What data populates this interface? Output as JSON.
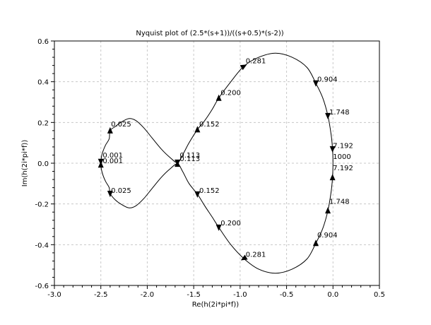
{
  "chart_data": {
    "type": "line",
    "title": "Nyquist plot of (2.5*(s+1))/((s+0.5)*(s-2))",
    "xlabel": "Re(h(2i*pi*f))",
    "ylabel": "Im(h(2i*pi*f))",
    "xlim": [
      -3.0,
      0.5
    ],
    "ylim": [
      -0.6,
      0.6
    ],
    "x_ticks": [
      "-3.0",
      "-2.5",
      "-2.0",
      "-1.5",
      "-1.0",
      "-0.5",
      "0.0",
      "0.5"
    ],
    "y_ticks": [
      "0.6",
      "0.4",
      "0.2",
      "0.0",
      "-0.2",
      "-0.4",
      "-0.6"
    ],
    "grid": true,
    "series": [
      {
        "values": [
          [
            -2.5,
            -0.0001
          ],
          [
            -2.494,
            -0.03
          ],
          [
            -2.476,
            -0.06
          ],
          [
            -2.448,
            -0.09
          ],
          [
            -2.41,
            -0.12
          ],
          [
            -2.4,
            -0.149
          ],
          [
            -2.345,
            -0.18
          ],
          [
            -2.286,
            -0.2
          ],
          [
            -2.2,
            -0.219
          ],
          [
            -2.125,
            -0.21
          ],
          [
            -2.04,
            -0.175
          ],
          [
            -1.95,
            -0.125
          ],
          [
            -1.85,
            -0.07
          ],
          [
            -1.76,
            -0.03
          ],
          [
            -1.675,
            -0.003
          ],
          [
            -1.62,
            -0.04
          ],
          [
            -1.55,
            -0.1
          ],
          [
            -1.46,
            -0.152
          ],
          [
            -1.38,
            -0.21
          ],
          [
            -1.3,
            -0.265
          ],
          [
            -1.23,
            -0.315
          ],
          [
            -1.1,
            -0.4
          ],
          [
            -0.96,
            -0.468
          ],
          [
            -0.8,
            -0.52
          ],
          [
            -0.62,
            -0.54
          ],
          [
            -0.44,
            -0.52
          ],
          [
            -0.28,
            -0.47
          ],
          [
            -0.185,
            -0.393
          ],
          [
            -0.11,
            -0.32
          ],
          [
            -0.055,
            -0.233
          ],
          [
            -0.02,
            -0.14
          ],
          [
            -0.005,
            -0.07
          ],
          [
            0.0,
            0.0
          ],
          [
            -0.005,
            0.07
          ],
          [
            -0.02,
            0.14
          ],
          [
            -0.055,
            0.233
          ],
          [
            -0.11,
            0.32
          ],
          [
            -0.185,
            0.393
          ],
          [
            -0.28,
            0.47
          ],
          [
            -0.44,
            0.52
          ],
          [
            -0.62,
            0.54
          ],
          [
            -0.8,
            0.52
          ],
          [
            -0.96,
            0.476
          ],
          [
            -1.1,
            0.4
          ],
          [
            -1.23,
            0.32
          ],
          [
            -1.3,
            0.265
          ],
          [
            -1.38,
            0.21
          ],
          [
            -1.46,
            0.165
          ],
          [
            -1.55,
            0.1
          ],
          [
            -1.62,
            0.04
          ],
          [
            -1.675,
            0.003
          ],
          [
            -1.76,
            0.03
          ],
          [
            -1.85,
            0.07
          ],
          [
            -1.95,
            0.125
          ],
          [
            -2.04,
            0.175
          ],
          [
            -2.125,
            0.21
          ],
          [
            -2.2,
            0.219
          ],
          [
            -2.286,
            0.2
          ],
          [
            -2.345,
            0.18
          ],
          [
            -2.4,
            0.16
          ],
          [
            -2.41,
            0.12
          ],
          [
            -2.448,
            0.09
          ],
          [
            -2.476,
            0.06
          ],
          [
            -2.494,
            0.03
          ],
          [
            -2.5,
            0.0001
          ]
        ]
      }
    ],
    "arrows": [
      {
        "x": -2.4,
        "y": 0.16,
        "dir": "up"
      },
      {
        "x": -2.5,
        "y": 0.008,
        "dir": "down"
      },
      {
        "x": -2.5,
        "y": -0.008,
        "dir": "up"
      },
      {
        "x": -2.4,
        "y": -0.149,
        "dir": "down"
      },
      {
        "x": -1.675,
        "y": 0.004,
        "dir": "down"
      },
      {
        "x": -1.675,
        "y": -0.004,
        "dir": "up"
      },
      {
        "x": -1.46,
        "y": 0.165,
        "dir": "up"
      },
      {
        "x": -1.46,
        "y": -0.152,
        "dir": "down"
      },
      {
        "x": -1.23,
        "y": 0.32,
        "dir": "up"
      },
      {
        "x": -1.23,
        "y": -0.315,
        "dir": "down"
      },
      {
        "x": -0.96,
        "y": 0.476,
        "dir": "upright"
      },
      {
        "x": -0.96,
        "y": -0.468,
        "dir": "downleft"
      },
      {
        "x": -0.185,
        "y": 0.393,
        "dir": "down"
      },
      {
        "x": -0.185,
        "y": -0.393,
        "dir": "up"
      },
      {
        "x": -0.055,
        "y": 0.233,
        "dir": "down"
      },
      {
        "x": -0.055,
        "y": -0.233,
        "dir": "up"
      },
      {
        "x": -0.005,
        "y": 0.07,
        "dir": "down"
      },
      {
        "x": -0.005,
        "y": -0.07,
        "dir": "up"
      }
    ],
    "annotations": [
      {
        "text": "0.025",
        "x": -2.39,
        "y": 0.18
      },
      {
        "text": "0.001",
        "x": -2.48,
        "y": 0.028
      },
      {
        "text": "0.001",
        "x": -2.48,
        "y": 0.0
      },
      {
        "text": "0.025",
        "x": -2.39,
        "y": -0.145
      },
      {
        "text": "0.113",
        "x": -1.65,
        "y": 0.028
      },
      {
        "text": "0.113",
        "x": -1.65,
        "y": 0.01
      },
      {
        "text": "0.152",
        "x": -1.44,
        "y": 0.18
      },
      {
        "text": "0.152",
        "x": -1.44,
        "y": -0.145
      },
      {
        "text": "0.200",
        "x": -1.21,
        "y": 0.335
      },
      {
        "text": "0.200",
        "x": -1.21,
        "y": -0.305
      },
      {
        "text": "0.281",
        "x": -0.94,
        "y": 0.49
      },
      {
        "text": "0.281",
        "x": -0.94,
        "y": -0.46
      },
      {
        "text": "0.904",
        "x": -0.17,
        "y": 0.4
      },
      {
        "text": "0.904",
        "x": -0.17,
        "y": -0.365
      },
      {
        "text": "1.748",
        "x": -0.04,
        "y": 0.24
      },
      {
        "text": "1.748",
        "x": -0.04,
        "y": -0.2
      },
      {
        "text": "7.192",
        "x": 0.0,
        "y": 0.075
      },
      {
        "text": "1000",
        "x": 0.0,
        "y": 0.02
      },
      {
        "text": "7.192",
        "x": 0.0,
        "y": -0.035
      }
    ]
  }
}
